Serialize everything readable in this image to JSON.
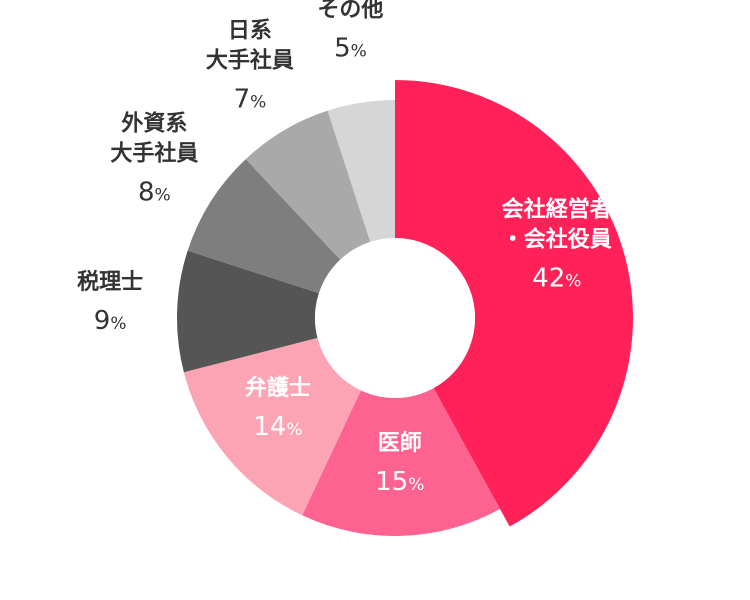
{
  "chart_data": {
    "type": "donut",
    "unit": "%",
    "slices": [
      {
        "label_lines": [
          "会社経営者",
          "・会社役員"
        ],
        "value": 42,
        "color": "#ff2157",
        "label_color": "#ffffff"
      },
      {
        "label_lines": [
          "医師"
        ],
        "value": 15,
        "color": "#fe6290",
        "label_color": "#ffffff"
      },
      {
        "label_lines": [
          "弁護士"
        ],
        "value": 14,
        "color": "#fda4b4",
        "label_color": "#ffffff"
      },
      {
        "label_lines": [
          "税理士"
        ],
        "value": 9,
        "color": "#555555",
        "label_color": "#333333"
      },
      {
        "label_lines": [
          "外資系",
          "大手社員"
        ],
        "value": 8,
        "color": "#7e7e7e",
        "label_color": "#333333"
      },
      {
        "label_lines": [
          "日系",
          "大手社員"
        ],
        "value": 7,
        "color": "#a9a9a9",
        "label_color": "#333333"
      },
      {
        "label_lines": [
          "その他"
        ],
        "value": 5,
        "color": "#d6d6d6",
        "label_color": "#333333"
      }
    ]
  }
}
